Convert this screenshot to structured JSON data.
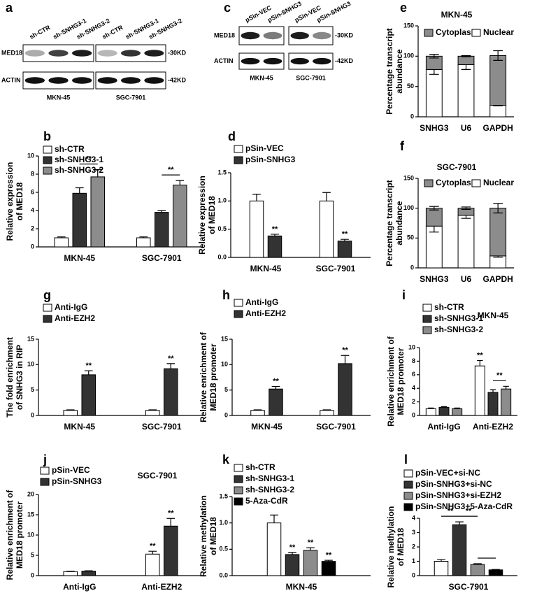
{
  "blots": [
    {
      "panel": "a",
      "lanes": [
        "sh-CTR",
        "sh-SNHG3-1",
        "sh-SNHG3-2",
        "sh-CTR",
        "sh-SNHG3-1",
        "sh-SNHG3-2"
      ],
      "rows": [
        "MED18",
        "ACTIN"
      ],
      "sizes": [
        "-30KD",
        "-42KD"
      ],
      "groups": [
        "MKN-45",
        "SGC-7901"
      ]
    },
    {
      "panel": "c",
      "lanes": [
        "pSin-VEC",
        "pSin-SNHG3",
        "pSin-VEC",
        "pSin-SNHG3"
      ],
      "rows": [
        "MED18",
        "ACTIN"
      ],
      "sizes": [
        "-30KD",
        "-42KD"
      ],
      "groups": [
        "MKN-45",
        "SGC-7901"
      ]
    }
  ],
  "chart_data": [
    {
      "type": "stacked_bar",
      "panel": "e",
      "title": "MKN-45",
      "ylabel": [
        "Percentage transcript",
        "abundance"
      ],
      "categories": [
        "SNHG3",
        "U6",
        "GAPDH"
      ],
      "series": [
        {
          "name": "Cytoplasm",
          "color": "#8c8c8c",
          "values": [
            22,
            14,
            82
          ],
          "errors": [
            3,
            1,
            8
          ]
        },
        {
          "name": "Nuclear",
          "color": "#ffffff",
          "values": [
            78,
            86,
            19
          ],
          "errors": [
            8,
            8,
            1
          ]
        }
      ],
      "ylim": [
        0,
        150
      ],
      "yticks": [
        0,
        50,
        100,
        150
      ]
    },
    {
      "type": "stacked_bar",
      "panel": "f",
      "title": "SGC-7901",
      "ylabel": [
        "Percentage transcript",
        "abundance"
      ],
      "categories": [
        "SNHG3",
        "U6",
        "GAPDH"
      ],
      "series": [
        {
          "name": "Cytoplasm",
          "color": "#8c8c8c",
          "values": [
            30,
            12,
            80
          ],
          "errors": [
            3,
            2,
            8
          ]
        },
        {
          "name": "Nuclear",
          "color": "#ffffff",
          "values": [
            70,
            88,
            20
          ],
          "errors": [
            10,
            5,
            2
          ]
        }
      ],
      "ylim": [
        0,
        150
      ],
      "yticks": [
        0,
        50,
        100,
        150
      ]
    },
    {
      "type": "bar",
      "panel": "b",
      "ylabel": [
        "Relative expression",
        "of MED18"
      ],
      "categories": [
        "MKN-45",
        "SGC-7901"
      ],
      "series": [
        {
          "name": "sh-CTR",
          "color": "#ffffff",
          "values": [
            1.0,
            1.0
          ],
          "errors": [
            0.1,
            0.1
          ]
        },
        {
          "name": "sh-SNHG3-1",
          "color": "#333333",
          "values": [
            5.9,
            3.8
          ],
          "errors": [
            0.6,
            0.2
          ]
        },
        {
          "name": "sh-SNHG3-2",
          "color": "#8c8c8c",
          "values": [
            7.7,
            6.8
          ],
          "errors": [
            0.8,
            0.5
          ]
        }
      ],
      "brackets": [
        {
          "category": 0,
          "from": 1,
          "to": 2,
          "text": "**"
        },
        {
          "category": 1,
          "from": 1,
          "to": 2,
          "text": "**"
        }
      ],
      "ylim": [
        0,
        10
      ],
      "yticks": [
        0,
        2,
        4,
        6,
        8,
        10
      ]
    },
    {
      "type": "bar",
      "panel": "d",
      "ylabel": [
        "Relative expression",
        "of MED18"
      ],
      "categories": [
        "MKN-45",
        "SGC-7901"
      ],
      "series": [
        {
          "name": "pSin-VEC",
          "color": "#ffffff",
          "values": [
            1.0,
            1.0
          ],
          "errors": [
            0.12,
            0.15
          ]
        },
        {
          "name": "pSin-SNHG3",
          "color": "#333333",
          "values": [
            0.38,
            0.29
          ],
          "errors": [
            0.03,
            0.03
          ],
          "significance": [
            "**",
            "**"
          ]
        }
      ],
      "ylim": [
        0,
        1.5
      ],
      "yticks": [
        {
          "value": 0,
          "label": "0.0"
        },
        0.5,
        {
          "value": 1,
          "label": "1.0"
        },
        1.5
      ]
    },
    {
      "type": "bar",
      "panel": "g",
      "ylabel": [
        "The fold enrichment",
        "of SNHG3 in RIP"
      ],
      "categories": [
        "MKN-45",
        "SGC-7901"
      ],
      "series": [
        {
          "name": "Anti-IgG",
          "color": "#ffffff",
          "values": [
            1.0,
            1.0
          ],
          "errors": [
            0.1,
            0.1
          ]
        },
        {
          "name": "Anti-EZH2",
          "color": "#333333",
          "values": [
            8.0,
            9.2
          ],
          "errors": [
            0.8,
            1.0
          ],
          "significance": [
            "**",
            "**"
          ]
        }
      ],
      "ylim": [
        0,
        15
      ],
      "yticks": [
        0,
        5,
        10,
        15
      ]
    },
    {
      "type": "bar",
      "panel": "h",
      "ylabel": [
        "Relative enrichment of",
        "MED18 promoter"
      ],
      "categories": [
        "MKN-45",
        "SGC-7901"
      ],
      "series": [
        {
          "name": "Anti-IgG",
          "color": "#ffffff",
          "values": [
            1.0,
            1.0
          ],
          "errors": [
            0.1,
            0.1
          ]
        },
        {
          "name": "Anti-EZH2",
          "color": "#333333",
          "values": [
            5.2,
            10.2
          ],
          "errors": [
            0.5,
            1.6
          ],
          "significance": [
            "**",
            "**"
          ]
        }
      ],
      "ylim": [
        0,
        15
      ],
      "yticks": [
        0,
        5,
        10,
        15
      ]
    },
    {
      "type": "bar",
      "panel": "i",
      "title": "MKN-45",
      "ylabel": [
        "Relative enrichment of",
        "MED18 promoter"
      ],
      "categories": [
        "Anti-IgG",
        "Anti-EZH2"
      ],
      "series": [
        {
          "name": "sh-CTR",
          "color": "#ffffff",
          "values": [
            1.0,
            7.3
          ],
          "errors": [
            0.1,
            0.8
          ],
          "significance": [
            null,
            "**"
          ]
        },
        {
          "name": "sh-SNHG3-1",
          "color": "#333333",
          "values": [
            1.2,
            3.4
          ],
          "errors": [
            0.1,
            0.4
          ]
        },
        {
          "name": "sh-SNHG3-2",
          "color": "#8c8c8c",
          "values": [
            1.0,
            3.9
          ],
          "errors": [
            0.1,
            0.4
          ]
        }
      ],
      "brackets": [
        {
          "category": 1,
          "from": 1,
          "to": 2,
          "text": "**"
        }
      ],
      "ylim": [
        0,
        10
      ],
      "yticks": [
        0,
        2,
        4,
        6,
        8,
        10
      ]
    },
    {
      "type": "bar",
      "panel": "j",
      "title": "SGC-7901",
      "ylabel": [
        "Relative enrichment of",
        "MED18 promoter"
      ],
      "categories": [
        "Anti-IgG",
        "Anti-EZH2"
      ],
      "series": [
        {
          "name": "pSin-VEC",
          "color": "#ffffff",
          "values": [
            1.0,
            5.3
          ],
          "errors": [
            0.1,
            0.7
          ],
          "significance": [
            null,
            "**"
          ]
        },
        {
          "name": "pSin-SNHG3",
          "color": "#333333",
          "values": [
            1.1,
            12.2
          ],
          "errors": [
            0.1,
            1.9
          ],
          "significance": [
            null,
            "**"
          ]
        }
      ],
      "ylim": [
        0,
        20
      ],
      "yticks": [
        0,
        5,
        10,
        15,
        20
      ]
    },
    {
      "type": "bar",
      "panel": "k",
      "ylabel": [
        "Relative methylation",
        "of MED18"
      ],
      "categories": [
        "MKN-45"
      ],
      "series": [
        {
          "name": "sh-CTR",
          "color": "#ffffff",
          "values": [
            1.0
          ],
          "errors": [
            0.15
          ]
        },
        {
          "name": "sh-SNHG3-1",
          "color": "#333333",
          "values": [
            0.4
          ],
          "errors": [
            0.04
          ],
          "significance": [
            "**"
          ]
        },
        {
          "name": "sh-SNHG3-2",
          "color": "#8c8c8c",
          "values": [
            0.48
          ],
          "errors": [
            0.05
          ],
          "significance": [
            "**"
          ]
        },
        {
          "name": "5-Aza-CdR",
          "color": "#000000",
          "values": [
            0.27
          ],
          "errors": [
            0.02
          ],
          "significance": [
            "**"
          ]
        }
      ],
      "ylim": [
        0,
        1.5
      ],
      "yticks": [
        {
          "value": 0,
          "label": "0.0"
        },
        0.5,
        {
          "value": 1,
          "label": "1.0"
        },
        1.5
      ]
    },
    {
      "type": "bar",
      "panel": "l",
      "ylabel": [
        "Relative methylation",
        "of MED18"
      ],
      "categories": [
        "SGC-7901"
      ],
      "series": [
        {
          "name": "pSin-VEC+si-NC",
          "color": "#ffffff",
          "values": [
            1.0
          ],
          "errors": [
            0.12
          ]
        },
        {
          "name": "pSin-SNHG3+si-NC",
          "color": "#333333",
          "values": [
            3.55
          ],
          "errors": [
            0.2
          ]
        },
        {
          "name": "pSin-SNHG3+si-EZH2",
          "color": "#8c8c8c",
          "values": [
            0.78
          ],
          "errors": [
            0.05
          ]
        },
        {
          "name": "pSin-SNHG3+5-Aza-CdR",
          "color": "#000000",
          "values": [
            0.4
          ],
          "errors": [
            0.03
          ]
        }
      ],
      "brackets": [
        {
          "category": 0,
          "from": 0,
          "to": 1,
          "text": "**"
        },
        {
          "category": 0,
          "from": 1,
          "to": 2,
          "text": "**"
        },
        {
          "category": 0,
          "from": 2,
          "to": 3
        }
      ],
      "ylim": [
        0,
        4
      ],
      "yticks": [
        0,
        1,
        2,
        3,
        4
      ]
    }
  ]
}
